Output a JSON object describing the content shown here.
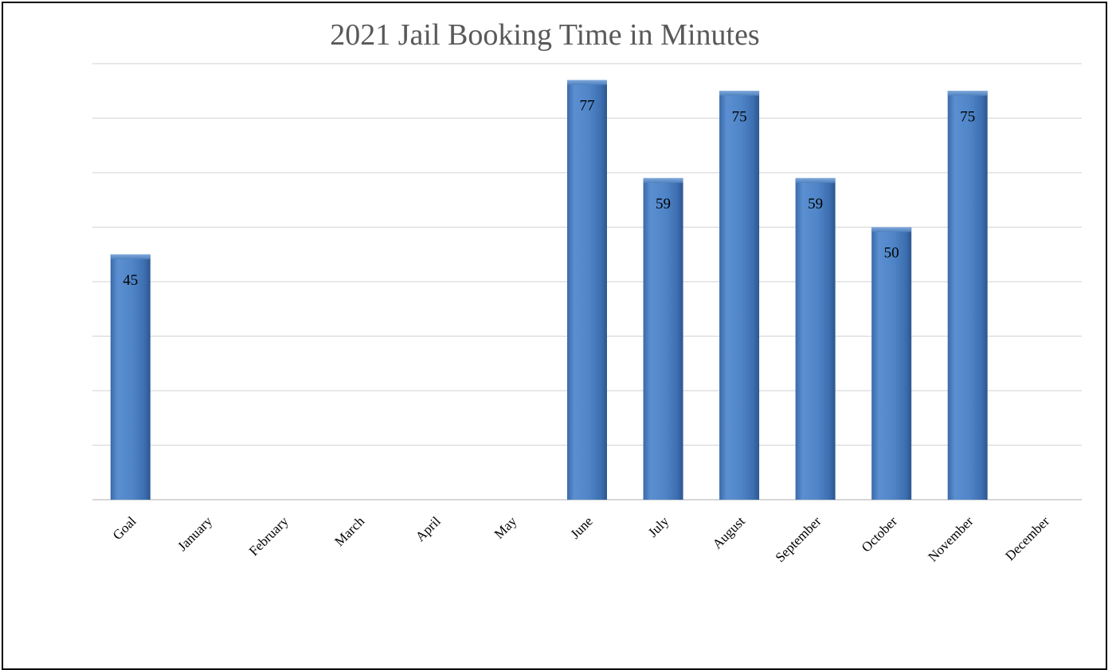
{
  "chart_data": {
    "type": "bar",
    "title": "2021 Jail Booking Time in Minutes",
    "xlabel": "",
    "ylabel": "",
    "categories": [
      "Goal",
      "January",
      "February",
      "March",
      "April",
      "May",
      "June",
      "July",
      "August",
      "September",
      "October",
      "November",
      "December"
    ],
    "values": [
      45,
      null,
      null,
      null,
      null,
      null,
      77,
      59,
      75,
      59,
      50,
      75,
      null
    ],
    "ylim": [
      0,
      80
    ],
    "grid": true,
    "legend": "none",
    "bar_color": "#4f81bd",
    "gridline_color": "#d9d9d9"
  }
}
